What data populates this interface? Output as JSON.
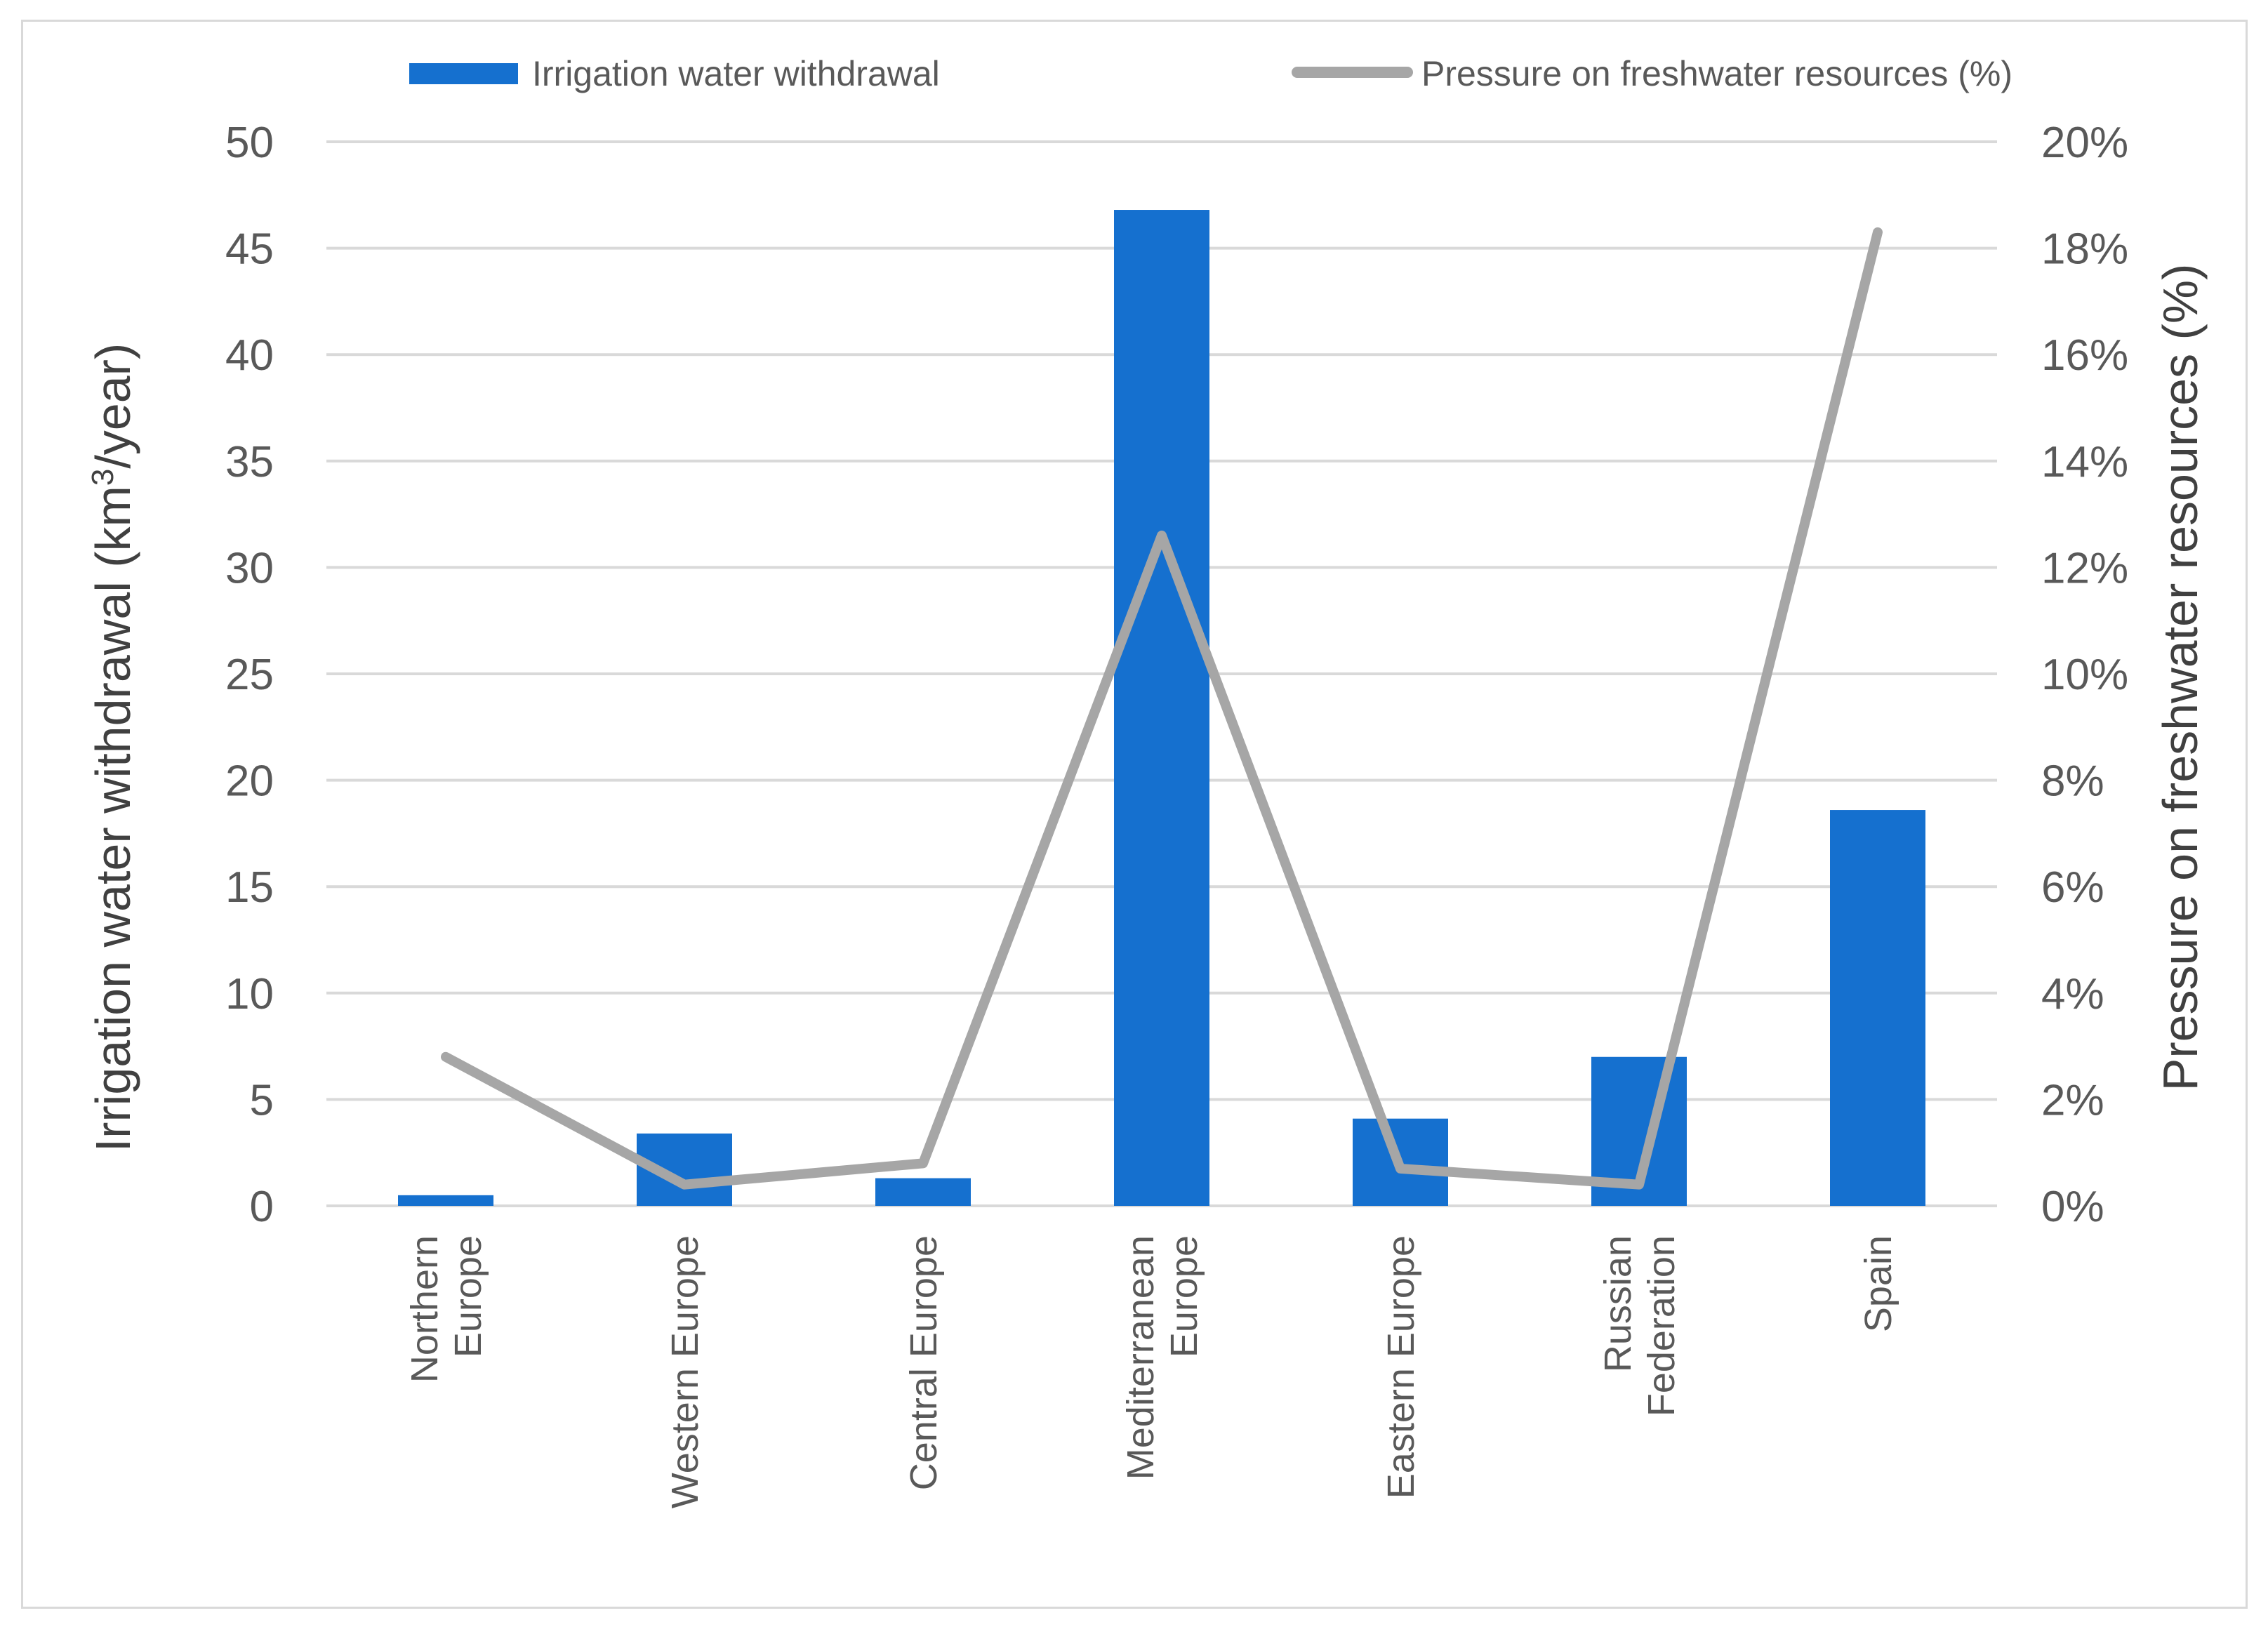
{
  "chart_data": {
    "type": "bar",
    "title": "",
    "categories": [
      "Northern Europe",
      "Western Europe",
      "Central Europe",
      "Mediterranean Europe",
      "Eastern Europe",
      "Russian Federation",
      "Spain"
    ],
    "category_lines": [
      [
        "Northern",
        "Europe"
      ],
      [
        "Western Europe"
      ],
      [
        "Central Europe"
      ],
      [
        "Mediterranean",
        "Europe"
      ],
      [
        "Eastern Europe"
      ],
      [
        "Russian",
        "Federation"
      ],
      [
        "Spain"
      ]
    ],
    "series": [
      {
        "name": "Irrigation water withdrawal",
        "type": "bar",
        "axis": "left",
        "color": "#1570cf",
        "values": [
          0.5,
          3.4,
          1.3,
          46.8,
          4.1,
          7.0,
          18.6
        ]
      },
      {
        "name": "Pressure on freshwater resources (%)",
        "type": "line",
        "axis": "right",
        "color": "#a6a6a6",
        "values": [
          2.8,
          0.4,
          0.8,
          12.6,
          0.7,
          0.4,
          18.3
        ]
      }
    ],
    "ylabel_left_parts": [
      "Irrigation water withdrawal (km",
      "3",
      "/year)"
    ],
    "ylabel_right": "Pressure on freshwater resources (%)",
    "ylim_left": [
      0,
      50
    ],
    "yticks_left": [
      "0",
      "5",
      "10",
      "15",
      "20",
      "25",
      "30",
      "35",
      "40",
      "45",
      "50"
    ],
    "ylim_right": [
      0,
      20
    ],
    "yticks_right": [
      "0%",
      "2%",
      "4%",
      "6%",
      "8%",
      "10%",
      "12%",
      "14%",
      "16%",
      "18%",
      "20%"
    ],
    "grid": true,
    "legend_position": "top"
  }
}
